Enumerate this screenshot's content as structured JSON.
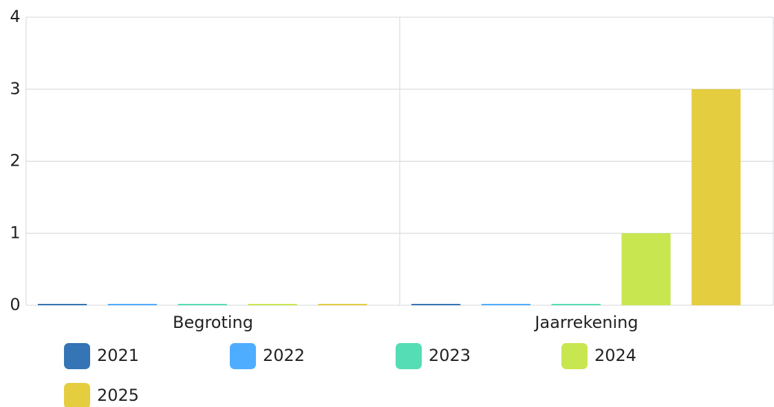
{
  "chart_data": {
    "type": "bar",
    "categories": [
      "Begroting",
      "Jaarrekening"
    ],
    "series": [
      {
        "name": "2021",
        "color": "#3574b5",
        "values": [
          0,
          0
        ]
      },
      {
        "name": "2022",
        "color": "#4eadff",
        "values": [
          0,
          0
        ]
      },
      {
        "name": "2023",
        "color": "#55ddb5",
        "values": [
          0,
          0
        ]
      },
      {
        "name": "2024",
        "color": "#c8e650",
        "values": [
          0,
          1
        ]
      },
      {
        "name": "2025",
        "color": "#e5cd40",
        "values": [
          0,
          3
        ]
      }
    ],
    "ylim": [
      0,
      4
    ],
    "yticks": [
      0,
      1,
      2,
      3,
      4
    ],
    "grid": true,
    "legend": "bottom"
  }
}
